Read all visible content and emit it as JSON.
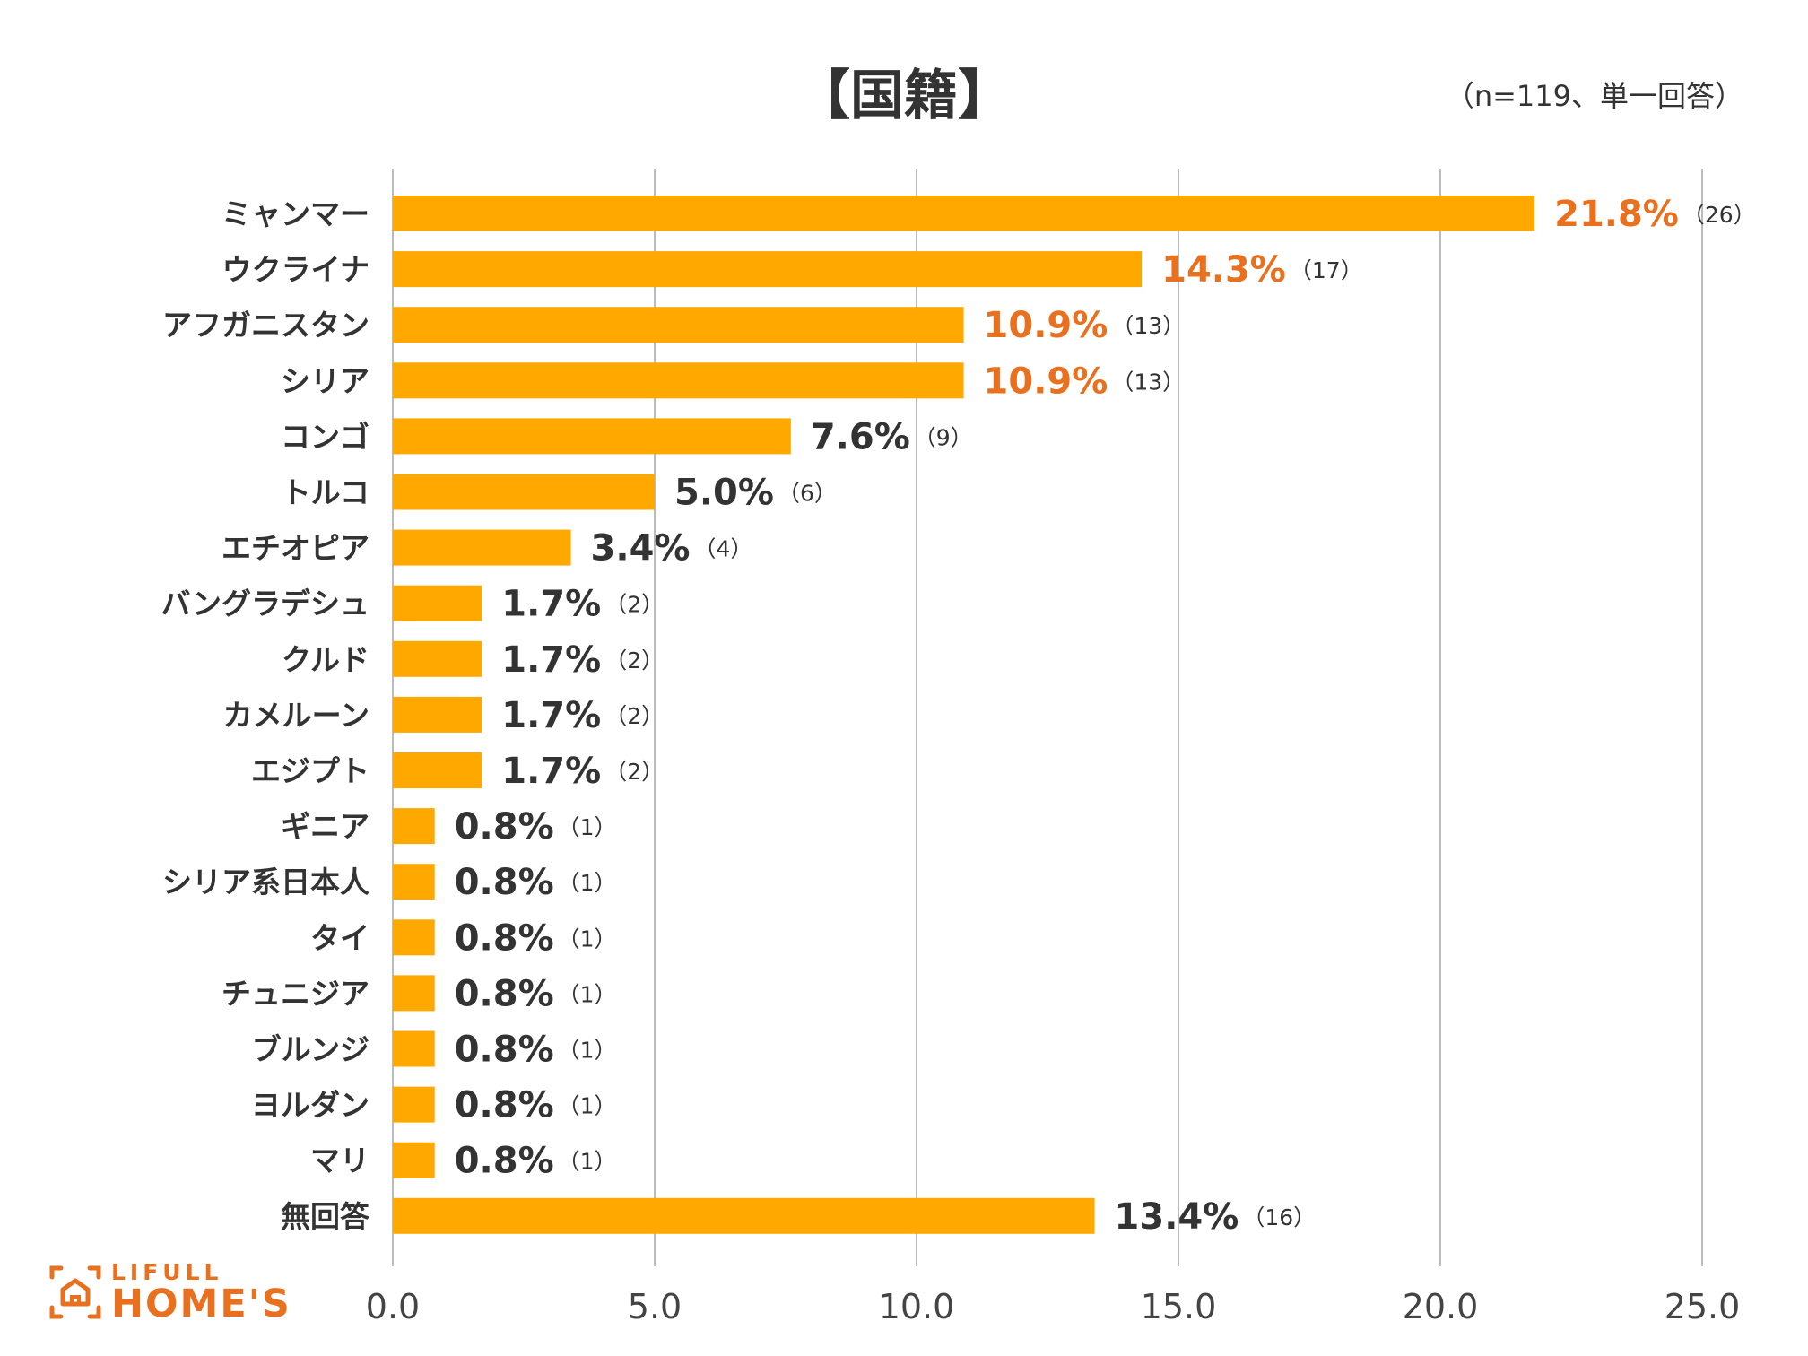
{
  "chart_data": {
    "type": "bar",
    "orientation": "horizontal",
    "title": "【国籍】",
    "subtitle": "（n=119、単一回答）",
    "categories": [
      "ミャンマー",
      "ウクライナ",
      "アフガニスタン",
      "シリア",
      "コンゴ",
      "トルコ",
      "エチオピア",
      "バングラデシュ",
      "クルド",
      "カメルーン",
      "エジプト",
      "ギニア",
      "シリア系日本人",
      "タイ",
      "チュニジア",
      "ブルンジ",
      "ヨルダン",
      "マリ",
      "無回答"
    ],
    "values": [
      21.8,
      14.3,
      10.9,
      10.9,
      7.6,
      5.0,
      3.4,
      1.7,
      1.7,
      1.7,
      1.7,
      0.8,
      0.8,
      0.8,
      0.8,
      0.8,
      0.8,
      0.8,
      13.4
    ],
    "value_labels": [
      "21.8%",
      "14.3%",
      "10.9%",
      "10.9%",
      "7.6%",
      "5.0%",
      "3.4%",
      "1.7%",
      "1.7%",
      "1.7%",
      "1.7%",
      "0.8%",
      "0.8%",
      "0.8%",
      "0.8%",
      "0.8%",
      "0.8%",
      "0.8%",
      "13.4%"
    ],
    "counts": [
      "（26）",
      "（17）",
      "（13）",
      "（13）",
      "（9）",
      "（6）",
      "（4）",
      "（2）",
      "（2）",
      "（2）",
      "（2）",
      "（1）",
      "（1）",
      "（1）",
      "（1）",
      "（1）",
      "（1）",
      "（1）",
      "（16）"
    ],
    "highlight_top_n": 4,
    "xlim": [
      0,
      25
    ],
    "x_ticks": [
      "0.0",
      "5.0",
      "10.0",
      "15.0",
      "20.0",
      "25.0"
    ],
    "grid": true,
    "xlabel": "",
    "ylabel": ""
  },
  "colors": {
    "bar": "#FFA800",
    "highlight_text": "#E8701E",
    "normal_text": "#333333",
    "grid": "#BBBBBB"
  },
  "logo": {
    "top": "LIFULL",
    "bottom": "HOME'S",
    "icon": "house-icon"
  }
}
